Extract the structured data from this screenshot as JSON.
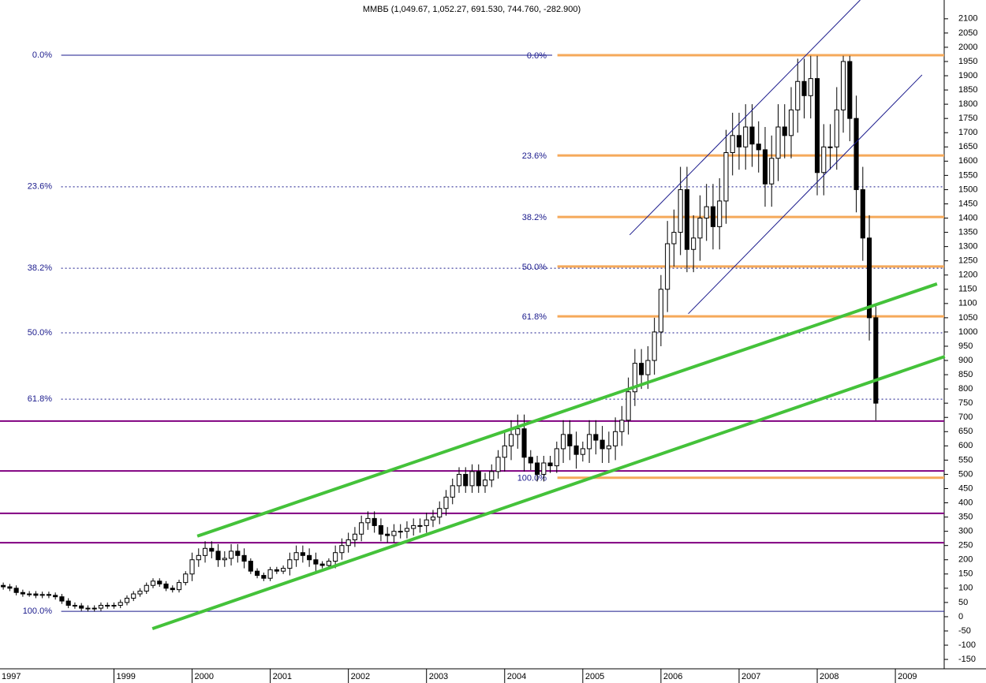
{
  "chart_data": {
    "type": "candlestick",
    "title": "ММВБ (1,049.67, 1,052.27, 691.530, 744.760, -282.900)",
    "open": [
      110,
      105,
      100,
      85,
      80,
      80,
      75,
      78,
      75,
      70,
      55,
      40,
      38,
      30,
      28,
      30,
      40,
      38,
      40,
      50,
      65,
      80,
      90,
      110,
      125,
      115,
      100,
      95,
      120,
      150,
      200,
      215,
      240,
      230,
      200,
      205,
      230,
      215,
      195,
      160,
      145,
      135,
      165,
      160,
      170,
      200,
      225,
      215,
      200,
      185,
      180,
      195,
      225,
      250,
      270,
      290,
      330,
      345,
      320,
      290,
      285,
      300,
      300,
      310,
      320,
      320,
      340,
      350,
      380,
      420,
      460,
      500,
      460,
      510,
      460,
      480,
      510,
      560,
      600,
      640,
      660,
      560,
      540,
      500,
      540,
      530,
      590,
      640,
      600,
      570,
      590,
      640,
      620,
      590,
      600,
      650,
      690,
      790,
      890,
      850,
      900,
      1000,
      1150,
      1310,
      1350,
      1500,
      1290,
      1330,
      1400,
      1440,
      1370,
      1460,
      1630,
      1690,
      1650,
      1720,
      1660,
      1640,
      1520,
      1610,
      1720,
      1690,
      1780,
      1880,
      1830,
      1890,
      1560,
      1650,
      1650,
      1780,
      1950,
      1750,
      1500,
      1330,
      1050
    ],
    "high": [
      120,
      115,
      110,
      95,
      90,
      90,
      88,
      88,
      85,
      80,
      65,
      50,
      48,
      40,
      40,
      50,
      50,
      50,
      60,
      75,
      90,
      100,
      120,
      135,
      135,
      125,
      110,
      130,
      160,
      225,
      240,
      265,
      265,
      255,
      230,
      255,
      255,
      240,
      205,
      170,
      155,
      175,
      175,
      180,
      225,
      250,
      250,
      240,
      225,
      195,
      205,
      250,
      275,
      295,
      315,
      355,
      370,
      370,
      345,
      315,
      325,
      325,
      335,
      345,
      345,
      365,
      375,
      405,
      445,
      485,
      525,
      525,
      535,
      535,
      505,
      535,
      585,
      650,
      690,
      710,
      710,
      585,
      565,
      565,
      565,
      615,
      690,
      690,
      650,
      615,
      690,
      690,
      670,
      650,
      700,
      740,
      840,
      940,
      940,
      950,
      1050,
      1200,
      1390,
      1430,
      1580,
      1580,
      1410,
      1480,
      1520,
      1520,
      1540,
      1710,
      1770,
      1770,
      1800,
      1800,
      1740,
      1720,
      1690,
      1800,
      1800,
      1860,
      1960,
      1960,
      1970,
      1970,
      1730,
      1730,
      1860,
      1970,
      1970,
      1830,
      1580,
      1410,
      1090
    ],
    "low": [
      95,
      90,
      75,
      70,
      70,
      65,
      65,
      65,
      60,
      45,
      30,
      28,
      20,
      18,
      18,
      20,
      28,
      28,
      30,
      40,
      55,
      70,
      80,
      100,
      105,
      90,
      85,
      85,
      110,
      125,
      175,
      190,
      205,
      175,
      175,
      180,
      190,
      170,
      150,
      135,
      125,
      125,
      150,
      150,
      145,
      175,
      190,
      175,
      160,
      170,
      170,
      170,
      200,
      225,
      245,
      265,
      305,
      295,
      265,
      260,
      260,
      275,
      275,
      285,
      295,
      295,
      315,
      325,
      355,
      395,
      435,
      435,
      435,
      435,
      435,
      455,
      485,
      510,
      550,
      590,
      510,
      515,
      475,
      475,
      505,
      505,
      540,
      550,
      520,
      545,
      540,
      570,
      540,
      540,
      550,
      600,
      640,
      740,
      800,
      800,
      850,
      950,
      1070,
      1230,
      1270,
      1210,
      1210,
      1250,
      1320,
      1290,
      1290,
      1380,
      1550,
      1570,
      1570,
      1580,
      1560,
      1440,
      1440,
      1530,
      1610,
      1610,
      1700,
      1750,
      1750,
      1480,
      1480,
      1570,
      1570,
      1700,
      1670,
      1420,
      1250,
      970,
      690
    ],
    "close": [
      105,
      100,
      85,
      80,
      80,
      75,
      78,
      75,
      70,
      55,
      40,
      38,
      30,
      28,
      30,
      40,
      38,
      40,
      50,
      65,
      80,
      90,
      110,
      125,
      115,
      100,
      95,
      120,
      150,
      200,
      215,
      240,
      230,
      200,
      205,
      230,
      215,
      195,
      160,
      145,
      135,
      165,
      160,
      170,
      200,
      225,
      215,
      200,
      185,
      180,
      195,
      225,
      250,
      270,
      290,
      330,
      345,
      320,
      290,
      285,
      300,
      300,
      310,
      320,
      320,
      340,
      350,
      380,
      420,
      460,
      500,
      460,
      510,
      460,
      480,
      510,
      560,
      600,
      640,
      660,
      560,
      540,
      500,
      540,
      530,
      590,
      640,
      600,
      570,
      590,
      640,
      620,
      590,
      600,
      650,
      690,
      790,
      890,
      850,
      900,
      1000,
      1150,
      1310,
      1350,
      1500,
      1290,
      1330,
      1400,
      1440,
      1370,
      1460,
      1630,
      1690,
      1650,
      1720,
      1660,
      1640,
      1520,
      1610,
      1720,
      1690,
      1780,
      1880,
      1830,
      1890,
      1560,
      1650,
      1650,
      1780,
      1950,
      1750,
      1500,
      1330,
      1050,
      750
    ],
    "colors": {
      "up": "#ffffff",
      "down": "#000000",
      "outline": "#000000"
    },
    "ylim": [
      -183,
      2166
    ],
    "yticks": [
      -150,
      -100,
      -50,
      0,
      50,
      100,
      150,
      200,
      250,
      300,
      350,
      400,
      450,
      500,
      550,
      600,
      650,
      700,
      750,
      800,
      850,
      900,
      950,
      1000,
      1050,
      1100,
      1150,
      1200,
      1250,
      1300,
      1350,
      1400,
      1450,
      1500,
      1550,
      1600,
      1650,
      1700,
      1750,
      1800,
      1850,
      1900,
      1950,
      2000,
      2050,
      2100
    ],
    "xlim": [
      -0.5,
      144.5
    ],
    "xticks": [
      {
        "value": -7,
        "label": "1997"
      },
      {
        "value": 17,
        "label": "1999"
      },
      {
        "value": 29,
        "label": "2000"
      },
      {
        "value": 41,
        "label": "2001"
      },
      {
        "value": 53,
        "label": "2002"
      },
      {
        "value": 65,
        "label": "2003"
      },
      {
        "value": 77,
        "label": "2004"
      },
      {
        "value": 89,
        "label": "2005"
      },
      {
        "value": 101,
        "label": "2006"
      },
      {
        "value": 113,
        "label": "2007"
      },
      {
        "value": 125,
        "label": "2008"
      },
      {
        "value": 137,
        "label": "2009"
      }
    ],
    "fib_left": {
      "color": "#1a1a8c",
      "start": 8.9,
      "levels": [
        {
          "label": "0.0%",
          "value": 1972,
          "end": 84.3,
          "style": "solid"
        },
        {
          "label": "23.6%",
          "value": 1510,
          "end": 144.5,
          "style": "dashed"
        },
        {
          "label": "38.2%",
          "value": 1224,
          "end": 144.5,
          "style": "dashed"
        },
        {
          "label": "50.0%",
          "value": 997,
          "end": 144.5,
          "style": "dashed"
        },
        {
          "label": "61.8%",
          "value": 764,
          "end": 144.5,
          "style": "dashed"
        },
        {
          "label": "100.0%",
          "value": 19,
          "end": 144.5,
          "style": "solid"
        }
      ]
    },
    "fib_right": {
      "color": "#f5a95a",
      "start": 85.1,
      "levels": [
        {
          "label": "0.0%",
          "value": 1972
        },
        {
          "label": "23.6%",
          "value": 1620
        },
        {
          "label": "38.2%",
          "value": 1404
        },
        {
          "label": "50.0%",
          "value": 1230
        },
        {
          "label": "61.8%",
          "value": 1055
        },
        {
          "label": "100.0%",
          "value": 488
        }
      ]
    },
    "hlines": {
      "color": "#800080",
      "values": [
        687,
        512,
        363,
        260
      ]
    },
    "trendlines": [
      {
        "color": "#44c23a",
        "width": 4,
        "points": [
          [
            29.8,
            283
          ],
          [
            143.4,
            1169
          ]
        ]
      },
      {
        "color": "#44c23a",
        "width": 4,
        "points": [
          [
            22.9,
            -42
          ],
          [
            144.6,
            914
          ]
        ]
      },
      {
        "color": "#1a1a8c",
        "width": 1,
        "points": [
          [
            96.2,
            1341
          ],
          [
            131.6,
            2166
          ]
        ]
      },
      {
        "color": "#1a1a8c",
        "width": 1,
        "points": [
          [
            105.2,
            1064
          ],
          [
            141.1,
            1903
          ]
        ]
      }
    ]
  }
}
